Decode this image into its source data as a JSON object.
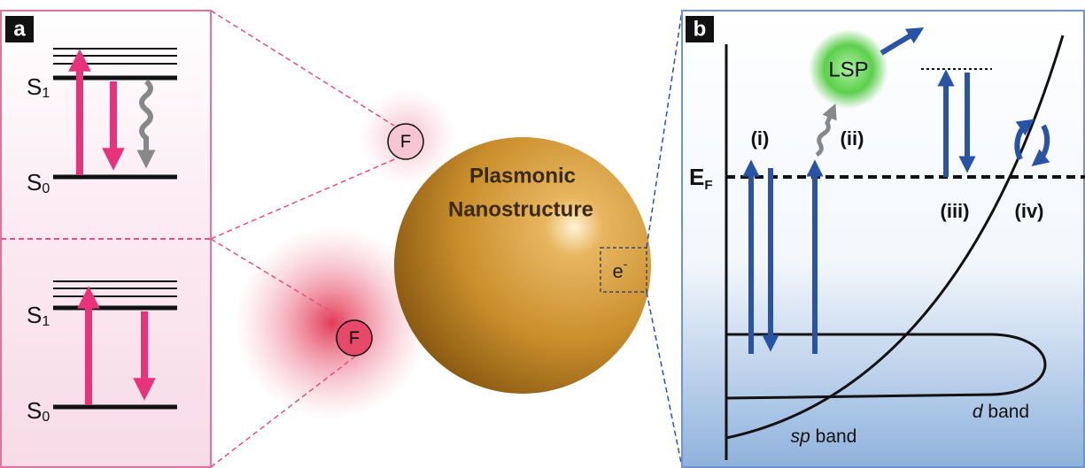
{
  "panel_a": {
    "label": "a",
    "upper": {
      "s1": {
        "base": "S",
        "sub": "1"
      },
      "s0": {
        "base": "S",
        "sub": "0"
      }
    },
    "lower": {
      "s1": {
        "base": "S",
        "sub": "1"
      },
      "s0": {
        "base": "S",
        "sub": "0"
      }
    }
  },
  "center": {
    "fluorophores": [
      "F",
      "F"
    ],
    "title_lines": [
      "Plasmonic",
      "Nanostructure"
    ],
    "electron": {
      "base": "e",
      "sup": "-"
    }
  },
  "panel_b": {
    "label": "b",
    "fermi": {
      "base": "E",
      "sub": "F"
    },
    "lsp": "LSP",
    "processes": [
      "(i)",
      "(ii)",
      "(iii)",
      "(iv)"
    ],
    "sp_band": {
      "italic": "sp",
      "rest": " band"
    },
    "d_band": {
      "italic": "d",
      "rest": " band"
    }
  }
}
